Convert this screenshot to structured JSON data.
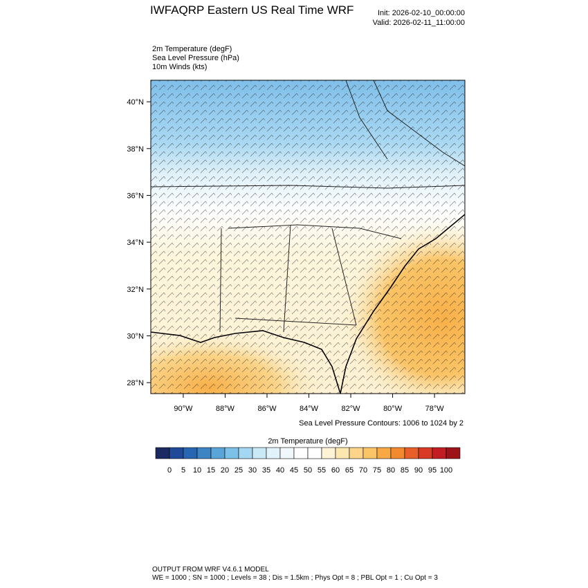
{
  "header": {
    "title": "IWFAQRP Eastern US Real Time WRF",
    "init": "Init: 2026-02-10_00:00:00",
    "valid": "Valid: 2026-02-11_11:00:00"
  },
  "fields": [
    "2m Temperature   (degF)",
    "Sea Level Pressure   (hPa)",
    "10m Winds   (kts)"
  ],
  "lat_ticks": [
    {
      "value": 28,
      "label": "28°N"
    },
    {
      "value": 30,
      "label": "30°N"
    },
    {
      "value": 32,
      "label": "32°N"
    },
    {
      "value": 34,
      "label": "34°N"
    },
    {
      "value": 36,
      "label": "36°N"
    },
    {
      "value": 38,
      "label": "38°N"
    },
    {
      "value": 40,
      "label": "40°N"
    }
  ],
  "lon_ticks": [
    {
      "value": -90,
      "label": "90°W"
    },
    {
      "value": -88,
      "label": "88°W"
    },
    {
      "value": -86,
      "label": "86°W"
    },
    {
      "value": -84,
      "label": "84°W"
    },
    {
      "value": -82,
      "label": "82°W"
    },
    {
      "value": -80,
      "label": "80°W"
    },
    {
      "value": -78,
      "label": "78°W"
    }
  ],
  "contour_note": "Sea Level Pressure Contours: 1006 to 1024 by 2",
  "colorbar": {
    "title": "2m Temperature  (degF)",
    "labels": [
      0,
      5,
      10,
      15,
      20,
      25,
      30,
      35,
      40,
      45,
      50,
      55,
      60,
      65,
      70,
      75,
      80,
      85,
      90,
      95,
      100
    ],
    "colors": [
      "#1b2a63",
      "#1f4a9a",
      "#2866b3",
      "#3d84c4",
      "#5aa5d8",
      "#7cc1e8",
      "#a4d8f2",
      "#c9e9f7",
      "#e2f2fa",
      "#f1f8fc",
      "#ffffff",
      "#ffffff",
      "#fff3d6",
      "#fde7b0",
      "#fcd58a",
      "#fbc466",
      "#f9a944",
      "#f48a2f",
      "#e95f2a",
      "#d93a26",
      "#c21d22",
      "#9c1418"
    ]
  },
  "footer": [
    "OUTPUT FROM WRF V4.6.1 MODEL",
    "WE = 1000 ; SN = 1000 ; Levels = 38 ; Dis = 1.5km ; Phys Opt = 8 ; PBL Opt = 1 ; Cu Opt = 3"
  ]
}
